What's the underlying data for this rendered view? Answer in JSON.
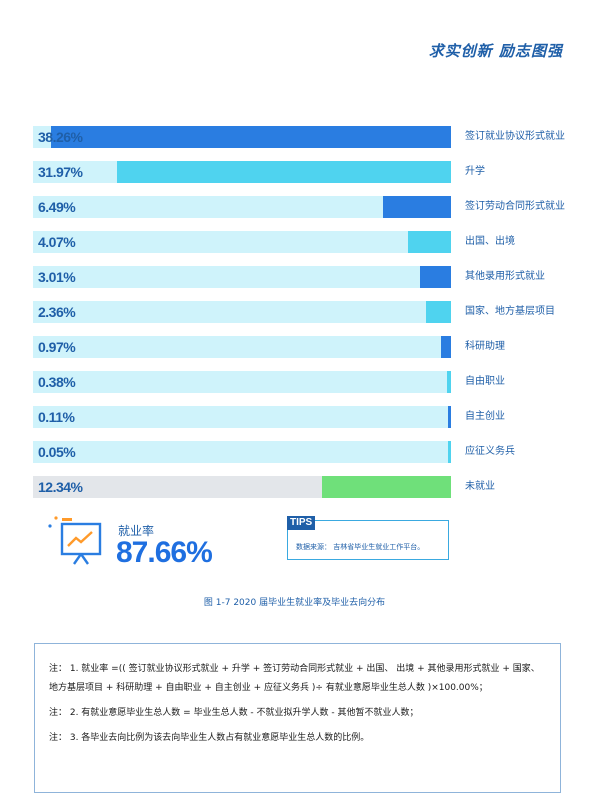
{
  "header": {
    "motto": "求实创新 励志图强"
  },
  "chart_data": {
    "type": "bar",
    "orientation": "horizontal",
    "categories": [
      "签订就业协议形式就业",
      "升学",
      "签订劳动合同形式就业",
      "出国、出境",
      "其他录用形式就业",
      "国家、地方基层项目",
      "科研助理",
      "自由职业",
      "自主创业",
      "应征义务兵",
      "未就业"
    ],
    "values": [
      38.26,
      31.97,
      6.49,
      4.07,
      3.01,
      2.36,
      0.97,
      0.38,
      0.11,
      0.05,
      12.34
    ],
    "value_labels": [
      "38.26%",
      "31.97%",
      "6.49%",
      "4.07%",
      "3.01%",
      "2.36%",
      "0.97%",
      "0.38%",
      "0.11%",
      "0.05%",
      "12.34%"
    ],
    "colors": [
      "#2a7de1",
      "#4fd3ef",
      "#2a7de1",
      "#4fd3ef",
      "#2a7de1",
      "#4fd3ef",
      "#2a7de1",
      "#4fd3ef",
      "#2a7de1",
      "#4fd3ef",
      "#6fe07a"
    ],
    "track_colors": [
      "#cff3fb",
      "#cff3fb",
      "#cff3fb",
      "#cff3fb",
      "#cff3fb",
      "#cff3fb",
      "#cff3fb",
      "#cff3fb",
      "#cff3fb",
      "#cff3fb",
      "#e3e6ea"
    ],
    "bar_anchor": "right",
    "xlim": [
      0,
      40
    ],
    "grid": false,
    "title": "",
    "xlabel": "",
    "ylabel": ""
  },
  "employment_rate": {
    "label": "就业率",
    "value": "87.66%",
    "icon": "presentation-chart-icon"
  },
  "tips": {
    "tag": "TIPS",
    "text": "数据来源：  吉林省毕业生就业工作平台。"
  },
  "caption": "图 1-7  2020 届毕业生就业率及毕业去向分布",
  "notes": [
    "注：  1. 就业率 =(( 签订就业协议形式就业 + 升学 + 签订劳动合同形式就业 + 出国、 出境 + 其他录用形式就业 + 国家、 地方基层项目 + 科研助理 + 自由职业 + 自主创业 + 应征义务兵 )÷ 有就业意愿毕业生总人数 )×100.00%；",
    "注：  2. 有就业意愿毕业生总人数 = 毕业生总人数 - 不就业拟升学人数 - 其他暂不就业人数；",
    "注：  3. 各毕业去向比例为该去向毕业生人数占有就业意愿毕业生总人数的比例。"
  ]
}
